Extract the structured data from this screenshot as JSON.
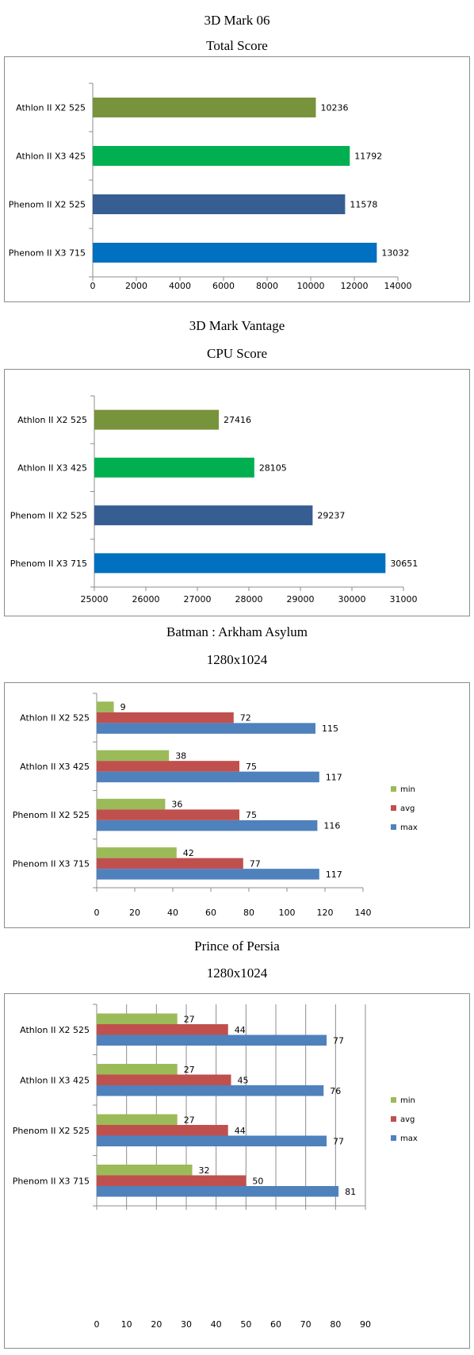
{
  "chart_data": [
    {
      "type": "bar",
      "orientation": "horizontal",
      "title": "3D Mark 06",
      "subtitle": "Total Score",
      "categories": [
        "Athlon II X2 525",
        "Athlon II X3 425",
        "Phenom II X2 525",
        "Phenom II X3 715"
      ],
      "values": [
        10236,
        11792,
        11578,
        13032
      ],
      "colors": [
        "#77933c",
        "#00b050",
        "#375e93",
        "#0070c0"
      ],
      "xlim": [
        0,
        14000
      ],
      "ticks": [
        "0",
        "2000",
        "4000",
        "6000",
        "8000",
        "10000",
        "12000",
        "14000"
      ],
      "grid": false
    },
    {
      "type": "bar",
      "orientation": "horizontal",
      "title": "3D Mark Vantage",
      "subtitle": "CPU Score",
      "categories": [
        "Athlon II X2 525",
        "Athlon II X3 425",
        "Phenom II X2 525",
        "Phenom II X3 715"
      ],
      "values": [
        27416,
        28105,
        29237,
        30651
      ],
      "colors": [
        "#77933c",
        "#00b050",
        "#375e93",
        "#0070c0"
      ],
      "xlim": [
        25000,
        31000
      ],
      "ticks": [
        "25000",
        "26000",
        "27000",
        "28000",
        "29000",
        "30000",
        "31000"
      ],
      "grid": false
    },
    {
      "type": "bar",
      "orientation": "horizontal",
      "title": "Batman : Arkham Asylum",
      "subtitle": "1280x1024",
      "categories": [
        "Athlon II X2 525",
        "Athlon II X3 425",
        "Phenom II X2 525",
        "Phenom II X3 715"
      ],
      "series": [
        {
          "name": "min",
          "values": [
            9,
            38,
            36,
            42
          ],
          "color": "#9bbb59"
        },
        {
          "name": "avg",
          "values": [
            72,
            75,
            75,
            77
          ],
          "color": "#c0504d"
        },
        {
          "name": "max",
          "values": [
            115,
            117,
            116,
            117
          ],
          "color": "#4f81bd"
        }
      ],
      "xlim": [
        0,
        140
      ],
      "ticks": [
        "0",
        "20",
        "40",
        "60",
        "80",
        "100",
        "120",
        "140"
      ],
      "legend": "right",
      "grid": false
    },
    {
      "type": "bar",
      "orientation": "horizontal",
      "title": "Prince of Persia",
      "subtitle": "1280x1024",
      "categories": [
        "Athlon II X2 525",
        "Athlon II X3 425",
        "Phenom II X2 525",
        "Phenom II X3 715"
      ],
      "series": [
        {
          "name": "min",
          "values": [
            27,
            27,
            27,
            32
          ],
          "color": "#9bbb59"
        },
        {
          "name": "avg",
          "values": [
            44,
            45,
            44,
            50
          ],
          "color": "#c0504d"
        },
        {
          "name": "max",
          "values": [
            77,
            76,
            77,
            81
          ],
          "color": "#4f81bd"
        }
      ],
      "xlim": [
        0,
        90
      ],
      "ticks": [
        "0",
        "10",
        "20",
        "30",
        "40",
        "50",
        "60",
        "70",
        "80",
        "90"
      ],
      "legend": "right",
      "grid": true
    }
  ]
}
